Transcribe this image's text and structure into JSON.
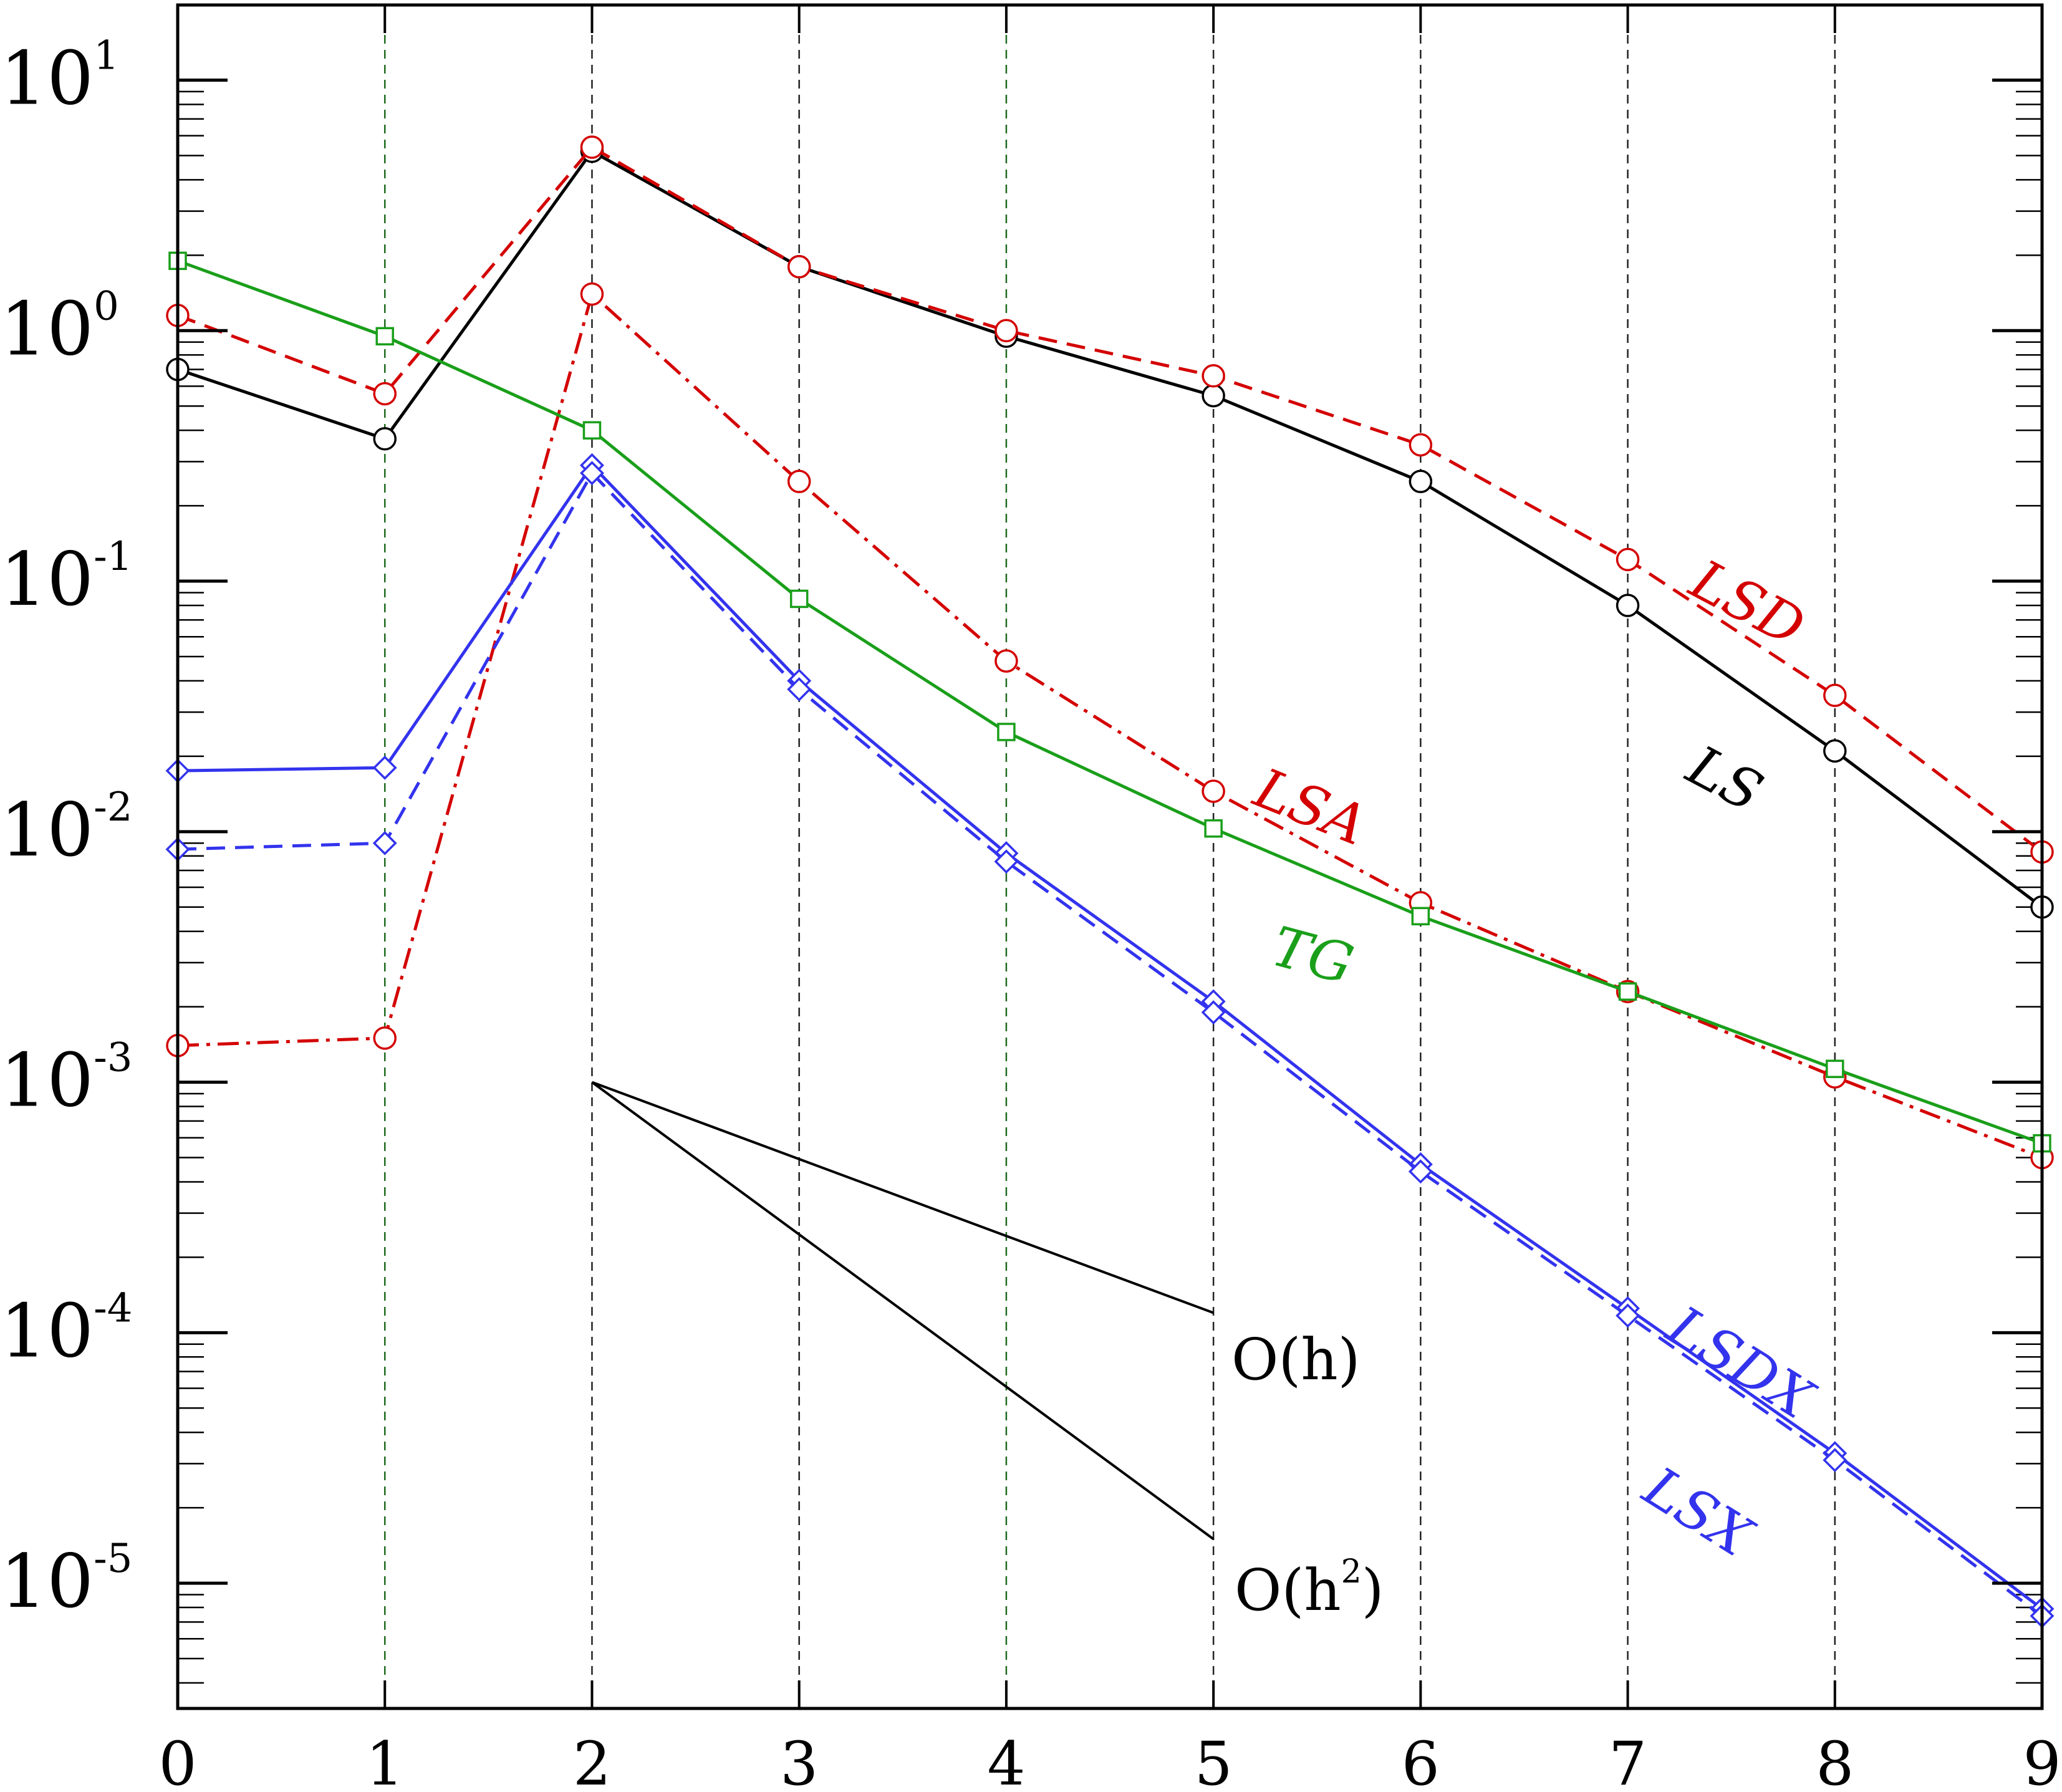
{
  "chart_data": {
    "type": "line",
    "title": "",
    "xlabel": "",
    "ylabel": "",
    "x": [
      0,
      1,
      2,
      3,
      4,
      5,
      6,
      7,
      8,
      9
    ],
    "xlim": [
      0,
      9
    ],
    "ylim_exponent": [
      -5.5,
      1.3
    ],
    "yscale": "log",
    "grid": "vertical dashed at each integer x",
    "x_tick_labels": [
      "0",
      "1",
      "2",
      "3",
      "4",
      "5",
      "6",
      "7",
      "8",
      "9"
    ],
    "y_tick_labels": [
      {
        "base": "10",
        "exp": "1",
        "value": 10
      },
      {
        "base": "10",
        "exp": "0",
        "value": 1
      },
      {
        "base": "10",
        "exp": "-1",
        "value": 0.1
      },
      {
        "base": "10",
        "exp": "-2",
        "value": 0.01
      },
      {
        "base": "10",
        "exp": "-3",
        "value": 0.001
      },
      {
        "base": "10",
        "exp": "-4",
        "value": 0.0001
      },
      {
        "base": "10",
        "exp": "-5",
        "value": 1e-05
      }
    ],
    "series": [
      {
        "name": "LS",
        "color": "#000000",
        "dash": "solid",
        "marker": "circle",
        "values": [
          0.7,
          0.37,
          5.2,
          1.8,
          0.95,
          0.55,
          0.25,
          0.08,
          0.021,
          0.005
        ]
      },
      {
        "name": "LSD",
        "color": "#d40000",
        "dash": "dashed",
        "marker": "circle",
        "values": [
          1.15,
          0.56,
          5.4,
          1.8,
          1.0,
          0.66,
          0.35,
          0.122,
          0.035,
          0.0083
        ]
      },
      {
        "name": "LSA",
        "color": "#d40000",
        "dash": "dashdot",
        "marker": "circle",
        "values": [
          0.0014,
          0.0015,
          1.4,
          0.25,
          0.048,
          0.0145,
          0.0052,
          0.0023,
          0.00105,
          0.0005
        ]
      },
      {
        "name": "TG",
        "color": "#1a9f1a",
        "dash": "solid",
        "marker": "square",
        "values": [
          1.9,
          0.95,
          0.4,
          0.085,
          0.025,
          0.0103,
          0.0046,
          0.0023,
          0.00113,
          0.00057
        ]
      },
      {
        "name": "LSDX",
        "color": "#3333ee",
        "dash": "solid",
        "marker": "diamond",
        "values": [
          0.0175,
          0.018,
          0.29,
          0.04,
          0.0082,
          0.0021,
          0.00047,
          0.000125,
          3.3e-05,
          7.9e-06
        ]
      },
      {
        "name": "LSX",
        "color": "#3333ee",
        "dash": "dashed",
        "marker": "diamond",
        "values": [
          0.0085,
          0.009,
          0.27,
          0.037,
          0.0076,
          0.0019,
          0.00044,
          0.000117,
          3.1e-05,
          7.4e-06
        ]
      }
    ],
    "reference_lines": [
      {
        "label": "O(h)",
        "x": [
          2,
          5
        ],
        "y": [
          0.001,
          0.00012
        ]
      },
      {
        "label": "O(h²)",
        "label_base": "O(h",
        "label_sup": "2",
        "label_close": ")",
        "x": [
          2,
          5
        ],
        "y": [
          0.001,
          1.5e-05
        ]
      }
    ]
  }
}
